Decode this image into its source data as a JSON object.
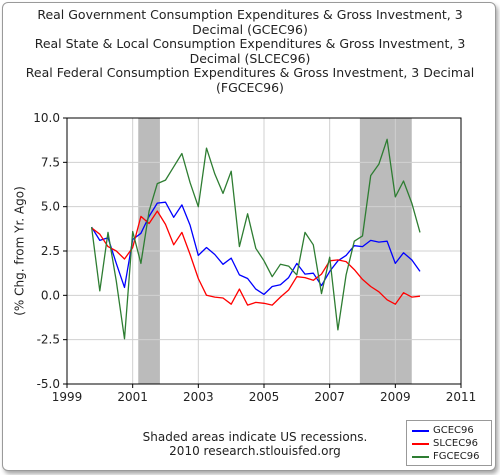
{
  "chart_data": {
    "type": "line",
    "title_lines": [
      "Real Government Consumption Expenditures & Gross Investment, 3",
      "Decimal (GCEC96)",
      "Real State & Local Consumption Expenditures & Gross Investment, 3",
      "Decimal (SLCEC96)",
      "Real Federal Consumption Expenditures & Gross Investment, 3 Decimal",
      "(FGCEC96)"
    ],
    "ylabel": "(% Chg. from Yr. Ago)",
    "xlabel": "",
    "xlim": [
      1999,
      2011
    ],
    "ylim": [
      -5.0,
      10.0
    ],
    "x_ticks": [
      1999,
      2001,
      2003,
      2005,
      2007,
      2009,
      2011
    ],
    "x_tick_labels": [
      "1999",
      "2001",
      "2003",
      "2005",
      "2007",
      "2009",
      "2011"
    ],
    "y_ticks": [
      -5.0,
      -2.5,
      0.0,
      2.5,
      5.0,
      7.5,
      10.0
    ],
    "y_tick_labels": [
      "-5.0",
      "-2.5",
      "0.0",
      "2.5",
      "5.0",
      "7.5",
      "10.0"
    ],
    "recessions": [
      [
        2001.17,
        2001.83
      ],
      [
        2007.92,
        2009.5
      ]
    ],
    "recession_color": "#bbbbbb",
    "grid": true,
    "legend_position": "bottom-right",
    "series": [
      {
        "name": "GCEC96",
        "color": "#0000ff",
        "x": [
          1999.75,
          2000.0,
          2000.25,
          2000.5,
          2000.75,
          2001.0,
          2001.25,
          2001.5,
          2001.75,
          2002.0,
          2002.25,
          2002.5,
          2002.75,
          2003.0,
          2003.25,
          2003.5,
          2003.75,
          2004.0,
          2004.25,
          2004.5,
          2004.75,
          2005.0,
          2005.25,
          2005.5,
          2005.75,
          2006.0,
          2006.25,
          2006.5,
          2006.75,
          2007.0,
          2007.25,
          2007.5,
          2007.75,
          2008.0,
          2008.25,
          2008.5,
          2008.75,
          2009.0,
          2009.25,
          2009.5,
          2009.75
        ],
        "values": [
          3.85,
          3.1,
          3.25,
          1.8,
          0.45,
          3.15,
          3.5,
          4.45,
          5.2,
          5.25,
          4.4,
          5.1,
          3.95,
          2.25,
          2.7,
          2.3,
          1.75,
          2.1,
          1.15,
          0.95,
          0.35,
          0.05,
          0.5,
          0.6,
          1.0,
          1.8,
          1.2,
          1.25,
          0.55,
          1.35,
          1.95,
          2.25,
          2.8,
          2.75,
          3.1,
          3.0,
          3.05,
          1.8,
          2.4,
          2.0,
          1.35
        ]
      },
      {
        "name": "SLCEC96",
        "color": "#ff0000",
        "x": [
          1999.75,
          2000.0,
          2000.25,
          2000.5,
          2000.75,
          2001.0,
          2001.25,
          2001.5,
          2001.75,
          2002.0,
          2002.25,
          2002.5,
          2002.75,
          2003.0,
          2003.25,
          2003.5,
          2003.75,
          2004.0,
          2004.25,
          2004.5,
          2004.75,
          2005.0,
          2005.25,
          2005.5,
          2005.75,
          2006.0,
          2006.25,
          2006.5,
          2006.75,
          2007.0,
          2007.25,
          2007.5,
          2007.75,
          2008.0,
          2008.25,
          2008.5,
          2008.75,
          2009.0,
          2009.25,
          2009.5,
          2009.75
        ],
        "values": [
          3.8,
          3.45,
          2.75,
          2.5,
          2.05,
          2.7,
          4.45,
          4.05,
          4.75,
          4.0,
          2.85,
          3.55,
          2.3,
          0.95,
          0.0,
          -0.1,
          -0.15,
          -0.5,
          0.35,
          -0.55,
          -0.4,
          -0.45,
          -0.55,
          -0.1,
          0.3,
          1.05,
          1.0,
          0.85,
          1.2,
          1.95,
          2.0,
          1.9,
          1.45,
          0.9,
          0.5,
          0.2,
          -0.25,
          -0.5,
          0.15,
          -0.1,
          -0.05
        ]
      },
      {
        "name": "FGCEC96",
        "color": "#2e7d32",
        "x": [
          1999.75,
          2000.0,
          2000.25,
          2000.5,
          2000.75,
          2001.0,
          2001.25,
          2001.5,
          2001.75,
          2002.0,
          2002.25,
          2002.5,
          2002.75,
          2003.0,
          2003.25,
          2003.5,
          2003.75,
          2004.0,
          2004.25,
          2004.5,
          2004.75,
          2005.0,
          2005.25,
          2005.5,
          2005.75,
          2006.0,
          2006.25,
          2006.5,
          2006.75,
          2007.0,
          2007.25,
          2007.5,
          2007.75,
          2008.0,
          2008.25,
          2008.5,
          2008.75,
          2009.0,
          2009.25,
          2009.5,
          2009.75
        ],
        "values": [
          3.85,
          0.25,
          3.55,
          0.8,
          -2.45,
          3.6,
          1.8,
          4.75,
          6.3,
          6.5,
          7.25,
          8.0,
          6.35,
          5.0,
          8.3,
          6.85,
          5.75,
          7.0,
          2.75,
          4.6,
          2.65,
          1.95,
          1.05,
          1.75,
          1.65,
          1.15,
          3.55,
          2.85,
          0.1,
          2.15,
          -1.95,
          1.15,
          3.05,
          3.35,
          6.75,
          7.4,
          8.8,
          5.55,
          6.45,
          5.2,
          3.55
        ]
      }
    ]
  },
  "note_lines": [
    "Shaded areas indicate US recessions.",
    "2010 research.stlouisfed.org"
  ]
}
